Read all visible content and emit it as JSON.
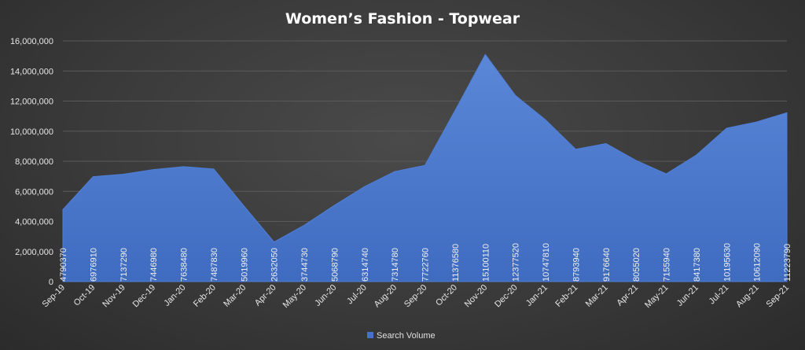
{
  "chart_data": {
    "type": "area",
    "title": "Women’s  Fashion  - Topwear",
    "categories": [
      "Sep-19",
      "Oct-19",
      "Nov-19",
      "Dec-19",
      "Jan-20",
      "Feb-20",
      "Mar-20",
      "Apr-20",
      "May-20",
      "Jun-20",
      "Jul-20",
      "Aug-20",
      "Sep-20",
      "Oct-20",
      "Nov-20",
      "Dec-20",
      "Jan-21",
      "Feb-21",
      "Mar-21",
      "Apr-21",
      "May-21",
      "Jun-21",
      "Jul-21",
      "Aug-21",
      "Sep-21"
    ],
    "series": [
      {
        "name": "Search Volume",
        "color": "#4472C4",
        "values": [
          4790370,
          6976910,
          7137290,
          7446980,
          7638480,
          7487830,
          5019960,
          2632050,
          3744730,
          5068790,
          6314740,
          7314780,
          7722760,
          11376580,
          15100110,
          12377520,
          10747810,
          8793940,
          9176640,
          8055020,
          7155940,
          8417380,
          10195630,
          10612090,
          11223790
        ],
        "labels": [
          "4790370",
          "6976910",
          "7137290",
          "7446980",
          "7638480",
          "7487830",
          "5019960",
          "2632050",
          "3744730",
          "5068790",
          "6314740",
          "7314780",
          "7722760",
          "11376580",
          "15100110",
          "12377520",
          "10747810",
          "8793940",
          "9176640",
          "8055020",
          "7155940",
          "8417380",
          "10195630",
          "10612090",
          "11223790"
        ]
      }
    ],
    "ylim": [
      0,
      16000000
    ],
    "yticks": [
      "0",
      "2,000,000",
      "4,000,000",
      "6,000,000",
      "8,000,000",
      "10,000,000",
      "12,000,000",
      "14,000,000",
      "16,000,000"
    ],
    "ytick_values": [
      0,
      2000000,
      4000000,
      6000000,
      8000000,
      10000000,
      12000000,
      14000000,
      16000000
    ],
    "grid": true,
    "legend": {
      "position": "bottom",
      "entries": [
        "Search Volume"
      ]
    }
  }
}
